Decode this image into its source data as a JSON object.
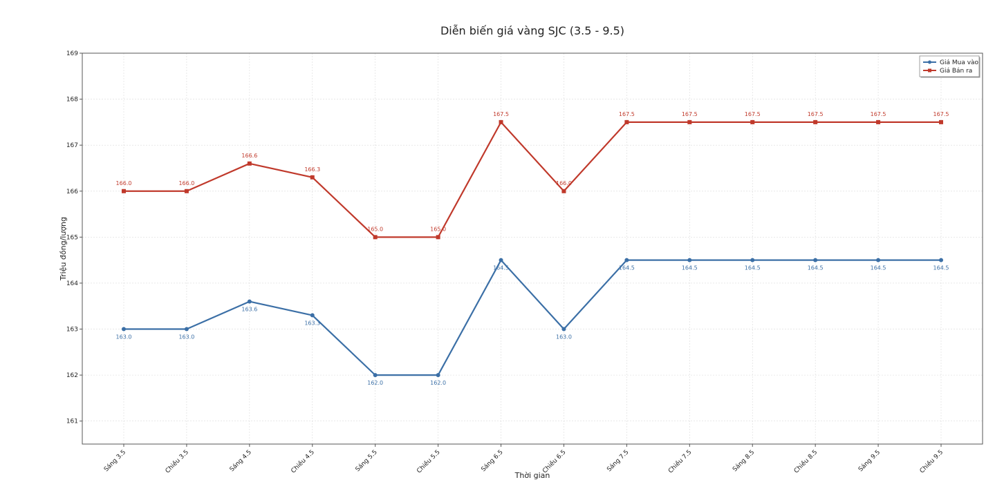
{
  "chart_data": {
    "type": "line",
    "title": "Diễn biến giá vàng SJC (3.5 - 9.5)",
    "xlabel": "Thời gian",
    "ylabel": "Triệu đồng/lượng",
    "ylim": [
      160.5,
      169
    ],
    "yticks": [
      161,
      162,
      163,
      164,
      165,
      166,
      167,
      168,
      169
    ],
    "grid": true,
    "legend_position": "top-right",
    "categories": [
      "Sáng 3.5",
      "Chiều 3.5",
      "Sáng 4.5",
      "Chiều 4.5",
      "Sáng 5.5",
      "Chiều 5.5",
      "Sáng 6.5",
      "Chiều 6.5",
      "Sáng 7.5",
      "Chiều 7.5",
      "Sáng 8.5",
      "Chiều 8.5",
      "Sáng 9.5",
      "Chiều 9.5"
    ],
    "series": [
      {
        "name": "Giá Mua vào",
        "color": "#3b6fa6",
        "marker": "circle",
        "values": [
          163.0,
          163.0,
          163.6,
          163.3,
          162.0,
          162.0,
          164.5,
          163.0,
          164.5,
          164.5,
          164.5,
          164.5,
          164.5,
          164.5
        ]
      },
      {
        "name": "Giá Bán ra",
        "color": "#c0392b",
        "marker": "square",
        "values": [
          166.0,
          166.0,
          166.6,
          166.3,
          165.0,
          165.0,
          167.5,
          166.0,
          167.5,
          167.5,
          167.5,
          167.5,
          167.5,
          167.5
        ]
      }
    ]
  }
}
